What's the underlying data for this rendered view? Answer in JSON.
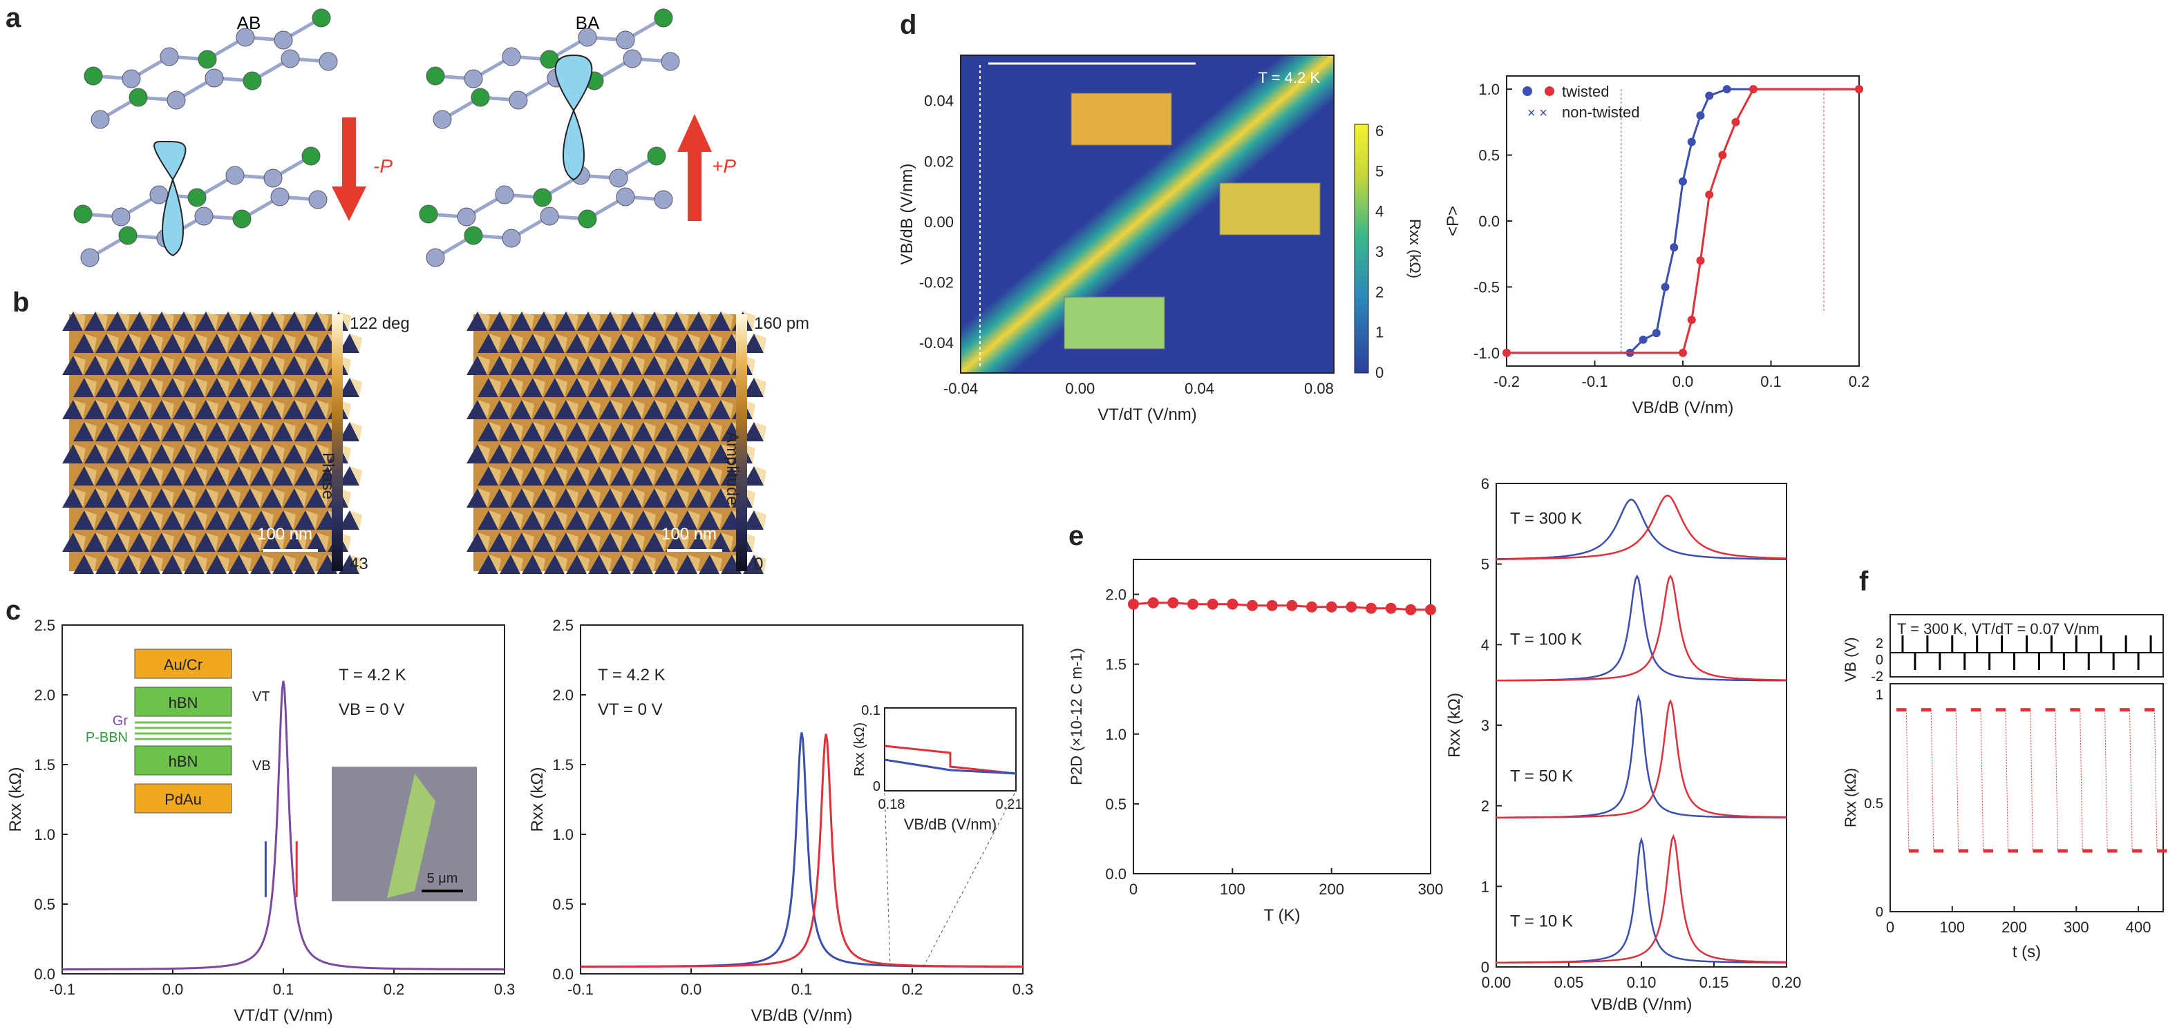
{
  "panel_labels": {
    "a": "a",
    "b": "b",
    "c": "c",
    "d": "d",
    "e": "e",
    "f": "f"
  },
  "panel_a": {
    "left_title": "AB",
    "right_title": "BA",
    "left_arrow_label": "-P",
    "right_arrow_label": "+P",
    "colors": {
      "carbon": "#2e9c3c",
      "boron_nitride": "#9aa6cc",
      "orbital": "#8fd4ec",
      "arrow_red": "#e53a2e"
    }
  },
  "panel_b": {
    "left": {
      "scale_label": "100 nm",
      "cb_max": "122 deg",
      "cb_min": "43",
      "cb_title": "Phase"
    },
    "right": {
      "scale_label": "100 nm",
      "cb_max": "160 pm",
      "cb_min": "0",
      "cb_title": "Amplitude"
    }
  },
  "chart_data": [
    {
      "id": "c-left",
      "type": "line",
      "xlabel": "VT/dT (V/nm)",
      "ylabel": "Rxx (kΩ)",
      "xlim": [
        -0.1,
        0.3
      ],
      "ylim": [
        0,
        2.5
      ],
      "xticks": [
        "-0.1",
        "0.0",
        "0.1",
        "0.2",
        "0.3"
      ],
      "yticks": [
        "0.0",
        "0.5",
        "1.0",
        "1.5",
        "2.0",
        "2.5"
      ],
      "annotations": [
        "T = 4.2 K",
        "VB = 0 V"
      ],
      "device_stack": [
        "Au/Cr",
        "hBN",
        "hBN",
        "PdAu"
      ],
      "device_labels": {
        "gr": "Gr",
        "pbbn": "P-BBN",
        "vt": "VT",
        "vb": "VB"
      },
      "inset_scale": "5 μm",
      "series": [
        {
          "peak_x": 0.1,
          "peak_y": 2.1,
          "width": 0.006,
          "base": 0.03,
          "color": "#7b4aa0"
        }
      ]
    },
    {
      "id": "c-right",
      "type": "line",
      "xlabel": "VB/dB (V/nm)",
      "ylabel": "Rxx (kΩ)",
      "xlim": [
        -0.1,
        0.3
      ],
      "ylim": [
        0,
        2.5
      ],
      "xticks": [
        "-0.1",
        "0.0",
        "0.1",
        "0.2",
        "0.3"
      ],
      "yticks": [
        "0.0",
        "0.5",
        "1.0",
        "1.5",
        "2.0",
        "2.5"
      ],
      "annotations": [
        "T = 4.2 K",
        "VT = 0 V"
      ],
      "series": [
        {
          "peak_x": 0.1,
          "peak_y": 1.73,
          "width": 0.006,
          "base": 0.05,
          "color": "#3a4fb0"
        },
        {
          "peak_x": 0.122,
          "peak_y": 1.72,
          "width": 0.006,
          "base": 0.05,
          "color": "#e0303a"
        }
      ],
      "inset": {
        "xlim": [
          0.18,
          0.21
        ],
        "ylim": [
          0,
          0.1
        ],
        "xticks": [
          "0.18",
          "0.21"
        ],
        "yticks": [
          "0",
          "0.1"
        ],
        "ylabel": "Rxx (kΩ)",
        "xlabel": "VB/dB (V/nm)"
      }
    },
    {
      "id": "d-map",
      "type": "heatmap",
      "xlabel": "VT/dT (V/nm)",
      "ylabel": "VB/dB (V/nm)",
      "xlim": [
        -0.04,
        0.085
      ],
      "ylim": [
        -0.05,
        0.055
      ],
      "xticks": [
        "-0.04",
        "0.00",
        "0.04",
        "0.08"
      ],
      "yticks": [
        "0.04",
        "0.02",
        "0.00",
        "-0.02",
        "-0.04"
      ],
      "annotation": "T = 4.2 K",
      "colorbar": {
        "label": "Rxx (kΩ)",
        "ticks": [
          "6",
          "5",
          "4",
          "3",
          "2",
          "1",
          "0"
        ]
      }
    },
    {
      "id": "d-hyst",
      "type": "line",
      "xlabel": "VB/dB (V/nm)",
      "ylabel": "<P>",
      "xlim": [
        -0.2,
        0.2
      ],
      "ylim": [
        -1.1,
        1.1
      ],
      "xticks": [
        "-0.2",
        "-0.1",
        "0.0",
        "0.1",
        "0.2"
      ],
      "yticks": [
        "1.0",
        "0.5",
        "0.0",
        "-0.5",
        "-1.0"
      ],
      "legend": [
        "twisted",
        "non-twisted"
      ],
      "legend_position": "top-left",
      "series": [
        {
          "name": "twisted",
          "color": "#3a4fb0",
          "x": [
            -0.2,
            -0.06,
            -0.045,
            -0.03,
            -0.02,
            -0.01,
            0.0,
            0.01,
            0.02,
            0.03,
            0.05,
            0.2
          ],
          "y": [
            -1.0,
            -1.0,
            -0.9,
            -0.85,
            -0.5,
            -0.2,
            0.3,
            0.6,
            0.8,
            0.95,
            1.0,
            1.0
          ]
        },
        {
          "name": "twisted",
          "color": "#e0303a",
          "x": [
            -0.2,
            0.0,
            0.01,
            0.02,
            0.03,
            0.045,
            0.06,
            0.08,
            0.2
          ],
          "y": [
            -1.0,
            -1.0,
            -0.75,
            -0.3,
            0.2,
            0.5,
            0.75,
            1.0,
            1.0
          ]
        }
      ]
    },
    {
      "id": "e-p2d",
      "type": "scatter",
      "xlabel": "T (K)",
      "ylabel": "P2D (×10-12 C m-1)",
      "xlim": [
        0,
        300
      ],
      "ylim": [
        0,
        2.25
      ],
      "xticks": [
        "0",
        "100",
        "200",
        "300"
      ],
      "yticks": [
        "0.0",
        "0.5",
        "1.0",
        "1.5",
        "2.0"
      ],
      "series": [
        {
          "color": "#e0303a",
          "x": [
            0,
            20,
            40,
            60,
            80,
            100,
            120,
            140,
            160,
            180,
            200,
            220,
            240,
            260,
            280,
            300
          ],
          "y": [
            1.93,
            1.94,
            1.94,
            1.93,
            1.93,
            1.93,
            1.92,
            1.92,
            1.92,
            1.91,
            1.91,
            1.91,
            1.9,
            1.9,
            1.89,
            1.89
          ]
        }
      ]
    },
    {
      "id": "e-curves",
      "type": "line",
      "xlabel": "VB/dB (V/nm)",
      "ylabel": "Rxx (kΩ)",
      "xlim": [
        0,
        0.2
      ],
      "ylim": [
        0,
        6
      ],
      "xticks": [
        "0.00",
        "0.05",
        "0.10",
        "0.15",
        "0.20"
      ],
      "yticks": [
        "0",
        "1",
        "2",
        "3",
        "4",
        "5",
        "6"
      ],
      "temperatures": [
        "T = 300 K",
        "T = 100 K",
        "T = 50 K",
        "T = 10 K"
      ],
      "sets": [
        {
          "offset": 5.05,
          "blue": {
            "peak_x": 0.093,
            "peak_y": 5.8,
            "width": 0.012
          },
          "red": {
            "peak_x": 0.118,
            "peak_y": 5.85,
            "width": 0.013
          }
        },
        {
          "offset": 3.55,
          "blue": {
            "peak_x": 0.097,
            "peak_y": 4.85,
            "width": 0.006
          },
          "red": {
            "peak_x": 0.12,
            "peak_y": 4.85,
            "width": 0.007
          }
        },
        {
          "offset": 1.85,
          "blue": {
            "peak_x": 0.098,
            "peak_y": 3.35,
            "width": 0.005
          },
          "red": {
            "peak_x": 0.12,
            "peak_y": 3.3,
            "width": 0.006
          }
        },
        {
          "offset": 0.05,
          "blue": {
            "peak_x": 0.1,
            "peak_y": 1.58,
            "width": 0.005
          },
          "red": {
            "peak_x": 0.122,
            "peak_y": 1.62,
            "width": 0.006
          }
        }
      ]
    },
    {
      "id": "f-switch",
      "type": "line",
      "title": "T = 300 K, VT/dT = 0.07 V/nm",
      "xlabel": "t (s)",
      "ylabel_top": "VB (V)",
      "ylabel_bottom": "Rxx (kΩ)",
      "xlim": [
        0,
        440
      ],
      "xticks": [
        "0",
        "100",
        "200",
        "300",
        "400"
      ],
      "top_yticks": [
        "2",
        "0",
        "-2"
      ],
      "bottom_yticks": [
        "1",
        "0.5",
        "0"
      ],
      "rxx_high": 0.93,
      "rxx_low": 0.28,
      "period": 40
    }
  ]
}
